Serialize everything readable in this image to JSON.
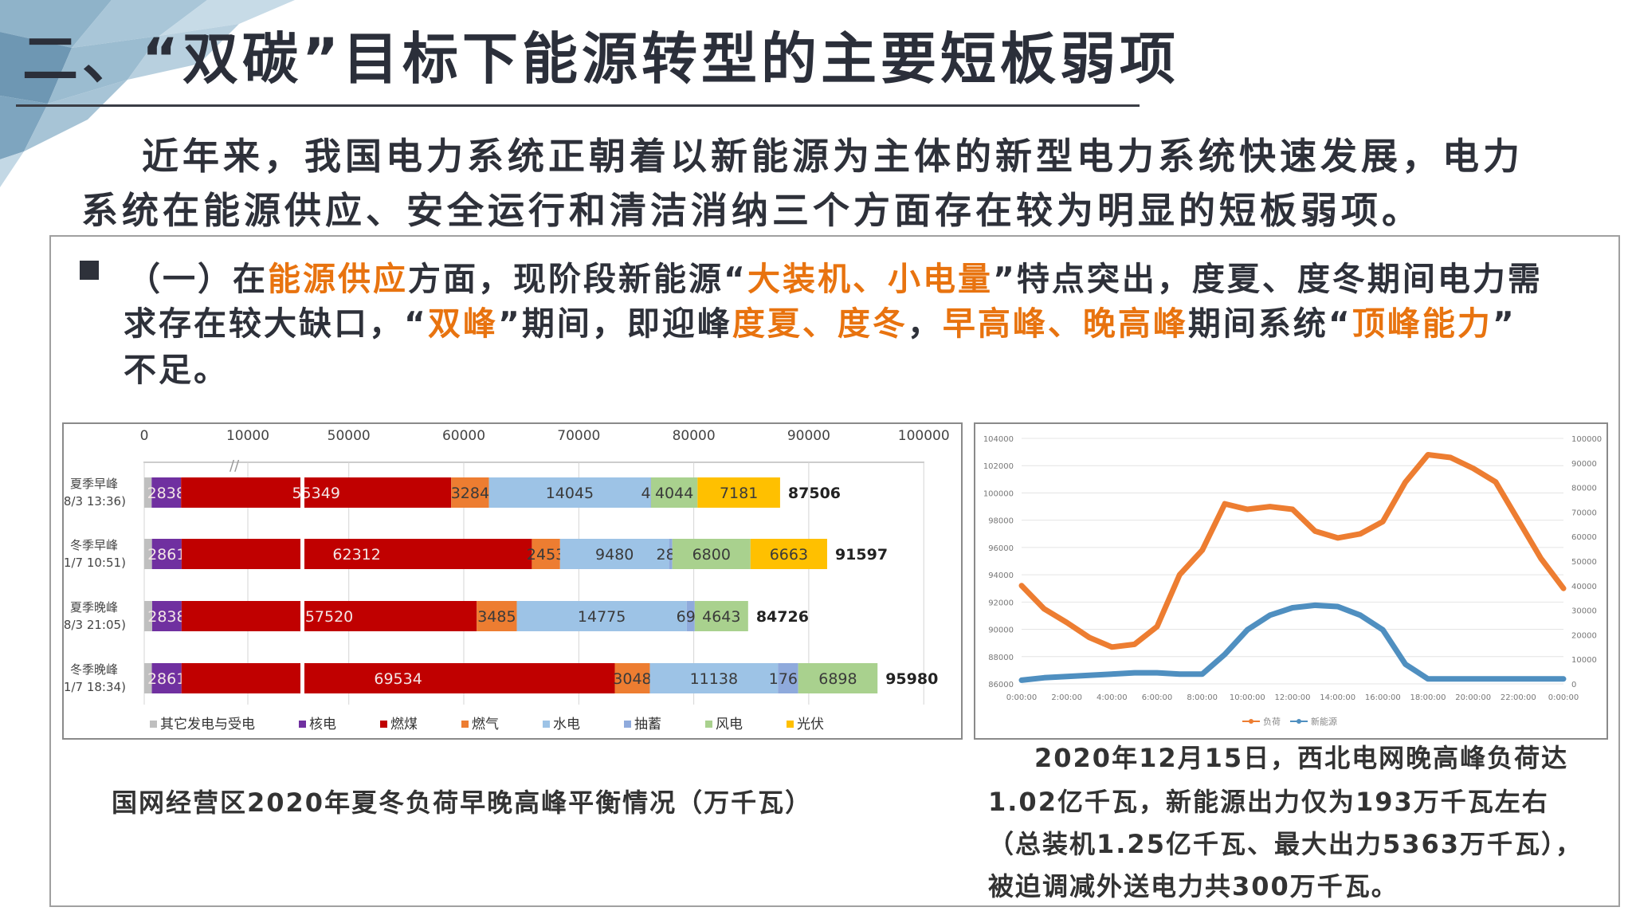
{
  "title": "二、“双碳”目标下能源转型的主要短板弱项",
  "intro": {
    "line1": "近年来，我国电力系统正朝着以新能源为主体的新型电力系统快速发展，电力",
    "line2": "系统在能源供应、安全运行和清洁消纳三个方面存在较为明显的短板弱项。"
  },
  "highlight_color": "#e8730f",
  "bullet": {
    "icon": "square-bullet",
    "lines": [
      [
        {
          "text": "（一）在",
          "hl": false
        },
        {
          "text": "能源供应",
          "hl": true
        },
        {
          "text": "方面，现阶段新能源“",
          "hl": false
        },
        {
          "text": "大装机、小电量",
          "hl": true
        },
        {
          "text": "”特点突出，度夏、度冬期间电力需",
          "hl": false
        }
      ],
      [
        {
          "text": "求存在较大缺口，“",
          "hl": false
        },
        {
          "text": "双峰",
          "hl": true
        },
        {
          "text": "”期间，即迎峰",
          "hl": false
        },
        {
          "text": "度夏、度冬",
          "hl": true
        },
        {
          "text": "，",
          "hl": false
        },
        {
          "text": "早高峰、晚高峰",
          "hl": true
        },
        {
          "text": "期间系统“",
          "hl": false
        },
        {
          "text": "顶峰能力",
          "hl": true
        },
        {
          "text": "”",
          "hl": false
        }
      ],
      [
        {
          "text": "不足。",
          "hl": false
        }
      ]
    ]
  },
  "captions": {
    "left": "国网经营区2020年夏冬负荷早晚高峰平衡情况（万千瓦）",
    "right": [
      "2020年12月15日，西北电网晚高峰负荷达",
      "1.02亿千瓦，新能源出力仅为193万千瓦左右",
      "（总装机1.25亿千瓦、最大出力5363万千瓦），",
      "被迫调减外送电力共300万千瓦。"
    ]
  },
  "chart_data": [
    {
      "type": "bar",
      "orientation": "horizontal-stacked",
      "axis_break": [
        15000,
        46000
      ],
      "xlim": [
        0,
        100000
      ],
      "x_ticks": [
        "0",
        "10000",
        "50000",
        "60000",
        "70000",
        "80000",
        "90000",
        "100000"
      ],
      "x_tick_values": [
        0,
        10000,
        50000,
        60000,
        70000,
        80000,
        90000,
        100000
      ],
      "categories": [
        [
          "夏季早峰",
          "(8/3 13:36)"
        ],
        [
          "冬季早峰",
          "(1/7 10:51)"
        ],
        [
          "夏季晚峰",
          "(8/3 21:05)"
        ],
        [
          "冬季晚峰",
          "(1/7 18:34)"
        ]
      ],
      "legend_position": "bottom",
      "series": [
        {
          "name": "其它发电与受电",
          "color": "#bfbfbf",
          "values": [
            717,
            745,
            767,
            735
          ],
          "labeled": false
        },
        {
          "name": "核电",
          "color": "#7030a0",
          "values": [
            2838,
            2861,
            2838,
            2861
          ],
          "labeled": true
        },
        {
          "name": "燃煤",
          "color": "#c00000",
          "values": [
            55349,
            62312,
            57520,
            69534
          ],
          "labeled": true
        },
        {
          "name": "燃气",
          "color": "#ed7d31",
          "values": [
            3284,
            2453,
            3485,
            3048
          ],
          "labeled": true
        },
        {
          "name": "水电",
          "color": "#9dc3e6",
          "values": [
            14045,
            9480,
            14775,
            11138
          ],
          "labeled": true
        },
        {
          "name": "抽蓄",
          "color": "#8faadc",
          "values": [
            48,
            283,
            698,
            1766
          ],
          "labeled": true
        },
        {
          "name": "风电",
          "color": "#a9d18e",
          "values": [
            4044,
            6800,
            4643,
            6898
          ],
          "labeled": true
        },
        {
          "name": "光伏",
          "color": "#ffc000",
          "values": [
            7181,
            6663,
            0,
            0
          ],
          "labeled": true
        }
      ],
      "totals": [
        87506,
        91597,
        84726,
        95980
      ]
    },
    {
      "type": "line",
      "x": [
        "0:00:00",
        "1:00",
        "2:00:00",
        "3:00",
        "4:00:00",
        "5:00",
        "6:00:00",
        "7:00",
        "8:00:00",
        "9:00",
        "10:00:00",
        "11:00",
        "12:00:00",
        "13:00",
        "14:00:00",
        "15:00",
        "16:00:00",
        "17:00",
        "18:00:00",
        "19:00",
        "20:00:00",
        "21:00",
        "22:00:00",
        "23:00",
        "0:00:00"
      ],
      "x_ticks": [
        "0:00:00",
        "2:00:00",
        "4:00:00",
        "6:00:00",
        "8:00:00",
        "10:00:00",
        "12:00:00",
        "14:00:00",
        "16:00:00",
        "18:00:00",
        "20:00:00",
        "22:00:00",
        "0:00:00"
      ],
      "y_left": {
        "lim": [
          86000,
          104000
        ],
        "ticks": [
          "86000",
          "88000",
          "90000",
          "92000",
          "94000",
          "96000",
          "98000",
          "100000",
          "102000",
          "104000"
        ]
      },
      "y_right": {
        "lim": [
          0,
          100000
        ],
        "ticks": [
          "0",
          "10000",
          "20000",
          "30000",
          "40000",
          "50000",
          "60000",
          "70000",
          "80000",
          "90000",
          "100000"
        ]
      },
      "grid": true,
      "legend_position": "bottom",
      "series": [
        {
          "name": "负荷",
          "axis": "left",
          "color": "#ed7d31",
          "values": [
            93200,
            91500,
            90500,
            89400,
            88700,
            88900,
            90200,
            94000,
            95800,
            99200,
            98800,
            99000,
            98800,
            97200,
            96700,
            97000,
            97900,
            100800,
            102800,
            102600,
            101800,
            100800,
            98000,
            95200,
            93000
          ]
        },
        {
          "name": "新能源",
          "axis": "right",
          "color": "#4f8fc0",
          "values": [
            1500,
            2500,
            3000,
            3500,
            4000,
            4500,
            4500,
            4000,
            4000,
            12000,
            22000,
            28000,
            31000,
            32000,
            31500,
            28000,
            22000,
            8000,
            2000,
            2000,
            2000,
            2000,
            2000,
            2000,
            2000
          ]
        }
      ]
    }
  ]
}
